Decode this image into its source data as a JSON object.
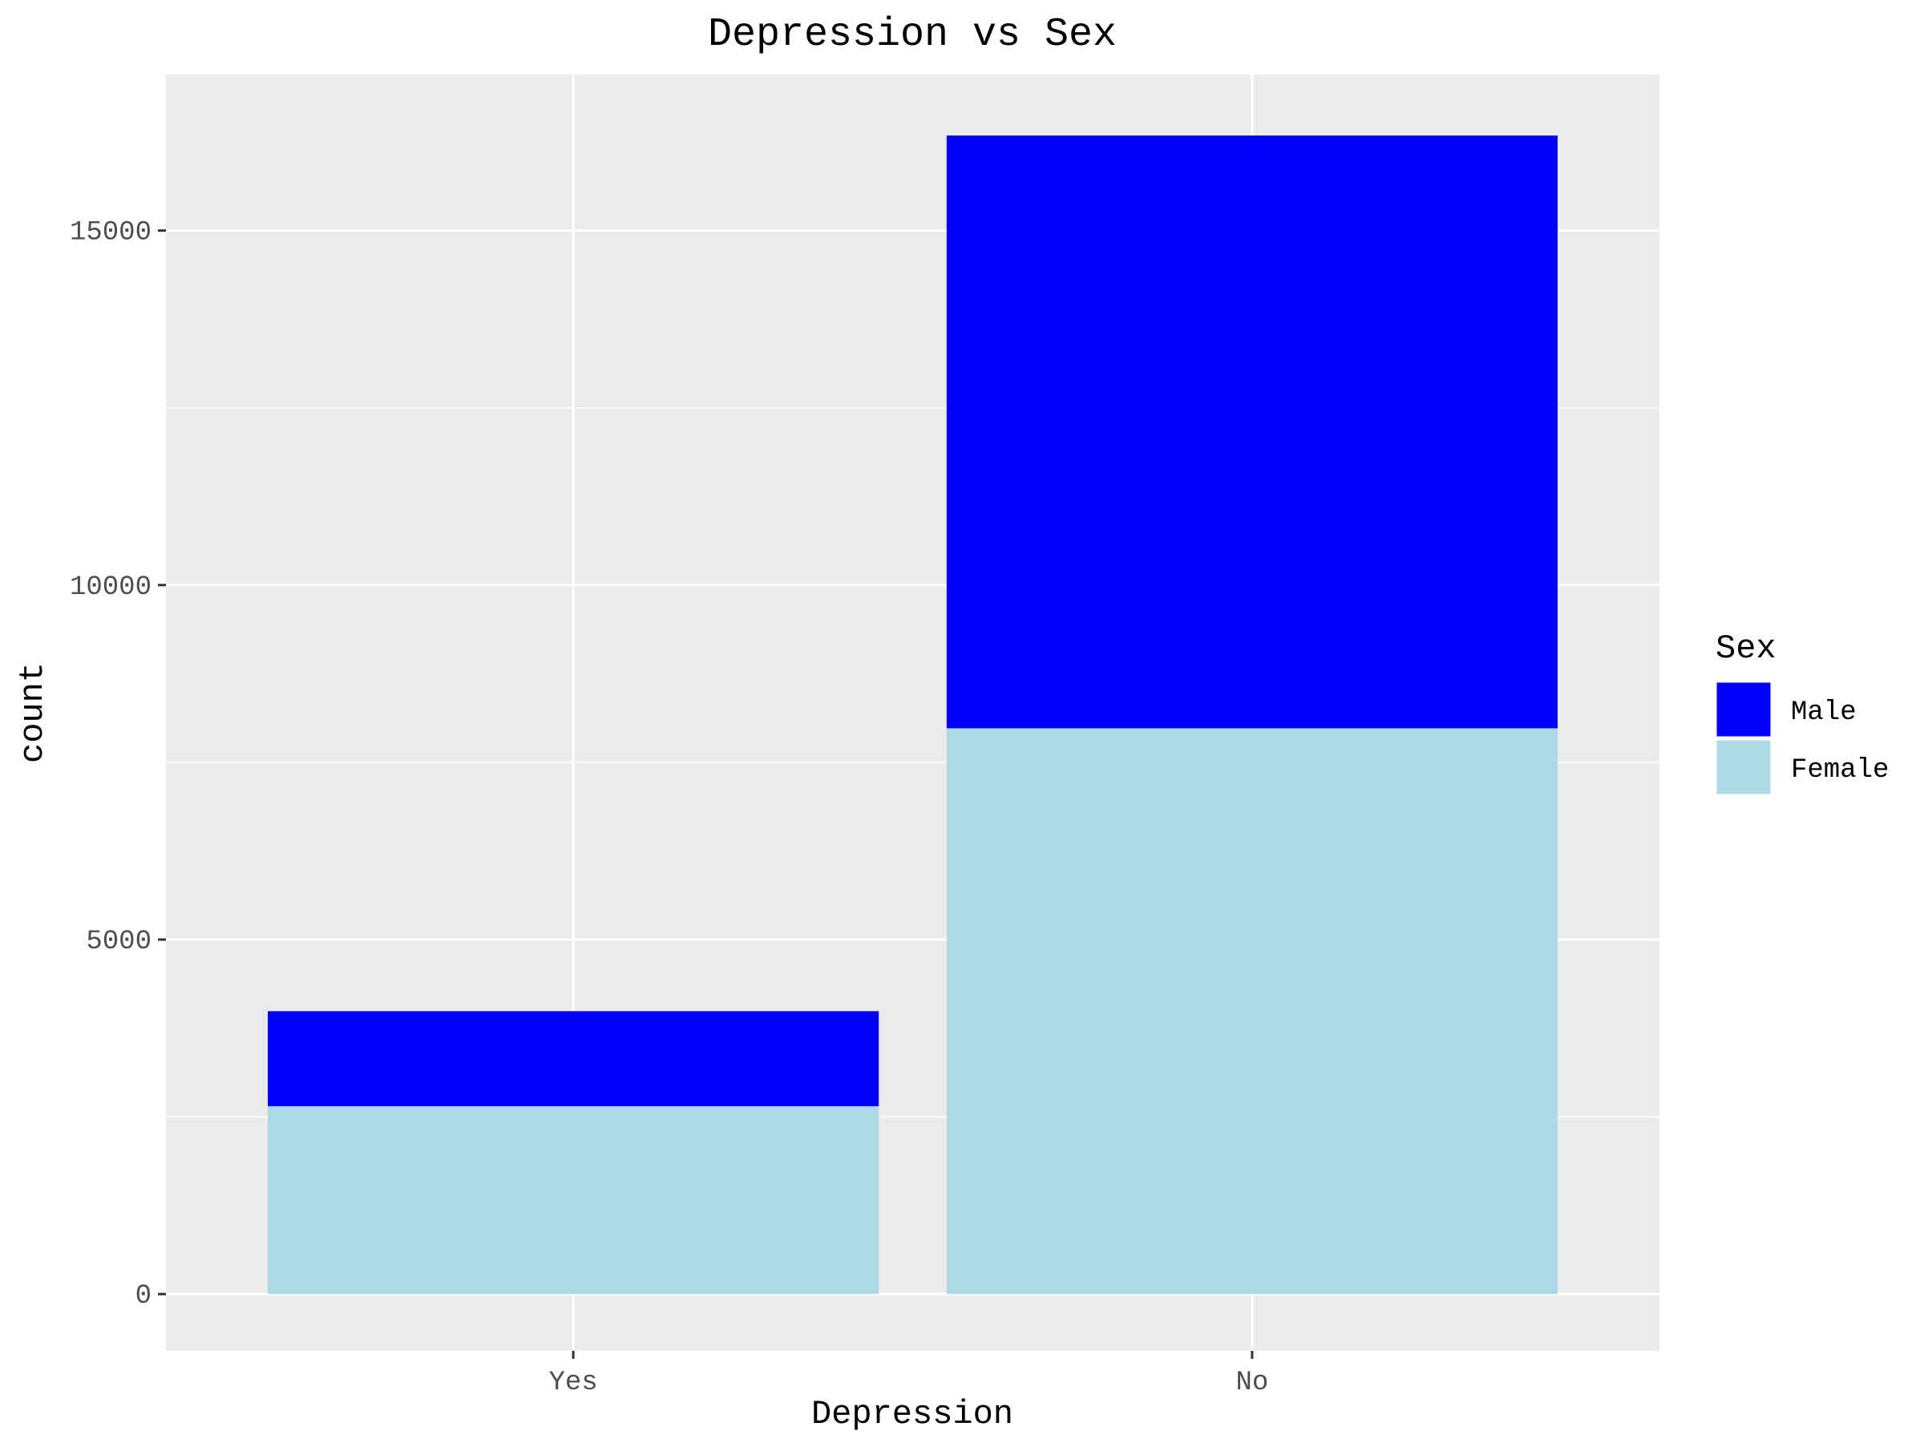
{
  "chart_data": {
    "type": "bar",
    "stacked": true,
    "title": "Depression vs Sex",
    "xlabel": "Depression",
    "ylabel": "count",
    "categories": [
      "Yes",
      "No"
    ],
    "series": [
      {
        "name": "Male",
        "color": "#0000FF",
        "values": [
          1340,
          8360
        ]
      },
      {
        "name": "Female",
        "color": "#ADD8E6",
        "values": [
          2650,
          7980
        ]
      }
    ],
    "yticks": [
      0,
      5000,
      10000,
      15000
    ],
    "ylim": [
      -800,
      17200
    ],
    "grid": true,
    "legend": {
      "title": "Sex",
      "position": "right",
      "items": [
        "Male",
        "Female"
      ]
    },
    "colors": {
      "panel": "#EBEBEB",
      "grid": "#FFFFFF",
      "tick_text": "#4D4D4D",
      "text": "#000000"
    }
  }
}
